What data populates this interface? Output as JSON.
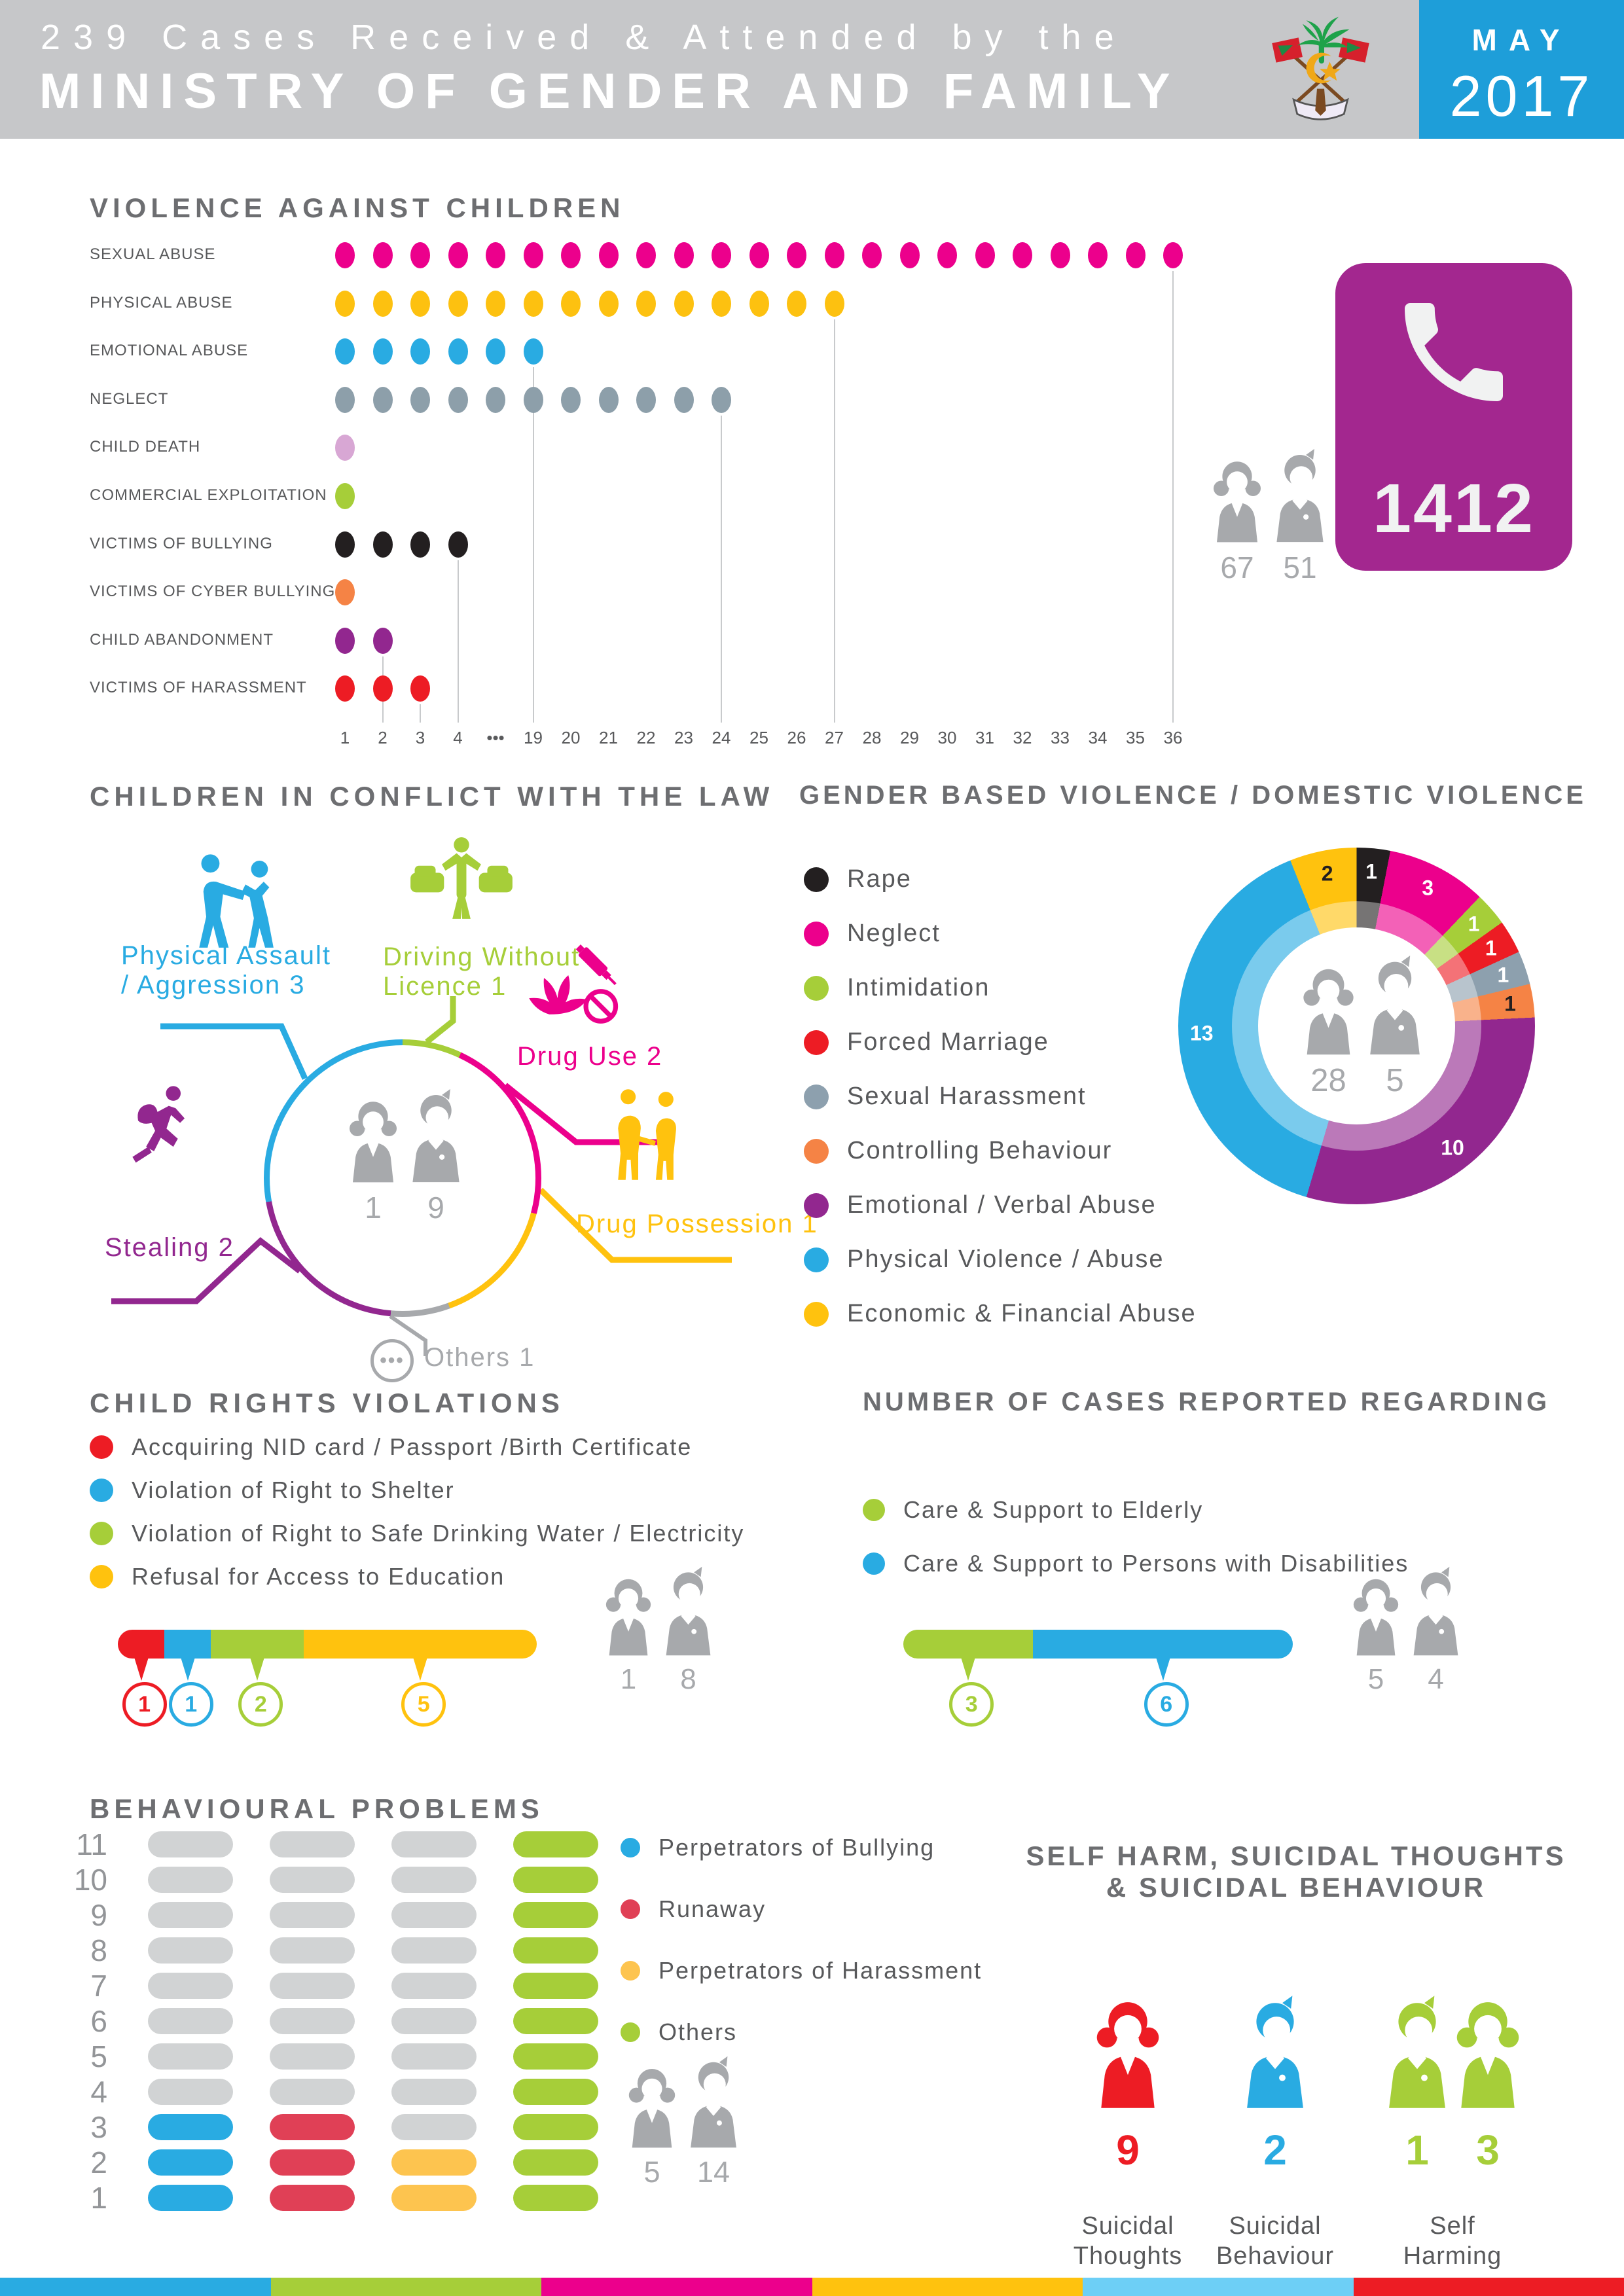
{
  "header": {
    "title_line1": "239 Cases Received & Attended by the",
    "title_line2": "MINISTRY OF GENDER AND FAMILY",
    "month": "MAY",
    "year": "2017",
    "bg": "#c6c7c9",
    "accent": "#1e9ed9",
    "emblem": "maldives-national-emblem"
  },
  "hotline": {
    "number": "1412",
    "bg": "#a3278f",
    "icon": "phone-icon"
  },
  "vac": {
    "title": "VIOLENCE AGAINST CHILDREN",
    "girls": "67",
    "boys": "51",
    "axis": [
      "1",
      "2",
      "3",
      "4",
      "•••",
      "19",
      "20",
      "21",
      "22",
      "23",
      "24",
      "25",
      "26",
      "27",
      "28",
      "29",
      "30",
      "31",
      "32",
      "33",
      "34",
      "35",
      "36"
    ],
    "rows": [
      {
        "label": "SEXUAL ABUSE",
        "value": 36,
        "ticks": 23,
        "color": "#ec008c",
        "line": true
      },
      {
        "label": "PHYSICAL ABUSE",
        "value": 27,
        "ticks": 14,
        "color": "#fdc110",
        "line": true
      },
      {
        "label": "EMOTIONAL ABUSE",
        "value": 19,
        "ticks": 6,
        "color": "#29abe2",
        "line": true
      },
      {
        "label": "NEGLECT",
        "value": 24,
        "ticks": 11,
        "color": "#8d9faa",
        "line": true
      },
      {
        "label": "CHILD DEATH",
        "value": 1,
        "ticks": 1,
        "color": "#d8a7d4",
        "line": false
      },
      {
        "label": "COMMERCIAL EXPLOITATION",
        "value": 1,
        "ticks": 1,
        "color": "#a6ce39",
        "line": false
      },
      {
        "label": "VICTIMS OF BULLYING",
        "value": 4,
        "ticks": 4,
        "color": "#231f20",
        "line": true
      },
      {
        "label": "VICTIMS OF CYBER BULLYING",
        "value": 1,
        "ticks": 1,
        "color": "#f58345",
        "line": false
      },
      {
        "label": "CHILD ABANDONMENT",
        "value": 2,
        "ticks": 2,
        "color": "#92278f",
        "line": true
      },
      {
        "label": "VICTIMS OF HARASSMENT",
        "value": 3,
        "ticks": 3,
        "color": "#ed1c24",
        "line": true
      }
    ]
  },
  "cicl": {
    "title": "CHILDREN IN CONFLICT WITH THE LAW",
    "girls": "1",
    "boys": "9",
    "ring_start_deg": -25,
    "ring": [
      {
        "color": "#a6ce39",
        "deg": 50
      },
      {
        "color": "#ec008c",
        "deg": 80
      },
      {
        "color": "#ffc20e",
        "deg": 55
      },
      {
        "color": "#a7a9ac",
        "deg": 25
      },
      {
        "color": "#92278f",
        "deg": 75
      },
      {
        "color": "#29abe2",
        "deg": 75
      }
    ],
    "items": [
      {
        "id": "physical-assault",
        "lines": [
          "Physical Assault",
          "/ Aggression 3"
        ],
        "value": 3,
        "color": "#29abe2"
      },
      {
        "id": "driving-without-licence",
        "lines": [
          "Driving Without",
          "Licence 1"
        ],
        "value": 1,
        "color": "#a6ce39"
      },
      {
        "id": "drug-use",
        "lines": [
          "Drug Use 2"
        ],
        "value": 2,
        "color": "#ec008c"
      },
      {
        "id": "drug-possession",
        "lines": [
          "Drug Possession 1"
        ],
        "value": 1,
        "color": "#ffc20e"
      },
      {
        "id": "stealing",
        "lines": [
          "Stealing 2"
        ],
        "value": 2,
        "color": "#92278f"
      },
      {
        "id": "others",
        "lines": [
          "Others 1"
        ],
        "value": 1,
        "color": "#a7a9ac"
      }
    ]
  },
  "gbv": {
    "title": "GENDER BASED VIOLENCE / DOMESTIC VIOLENCE",
    "women": "28",
    "men": "5",
    "legend": [
      {
        "label": "Rape",
        "color": "#231f20",
        "value": 1,
        "label_color": "#ffffff"
      },
      {
        "label": "Neglect",
        "color": "#ec008c",
        "value": 3,
        "label_color": "#ffffff"
      },
      {
        "label": "Intimidation",
        "color": "#a6ce39",
        "value": 1,
        "label_color": "#ffffff"
      },
      {
        "label": "Forced Marriage",
        "color": "#ed1c24",
        "value": 1,
        "label_color": "#ffffff"
      },
      {
        "label": "Sexual Harassment",
        "color": "#8da0ae",
        "value": 1,
        "label_color": "#ffffff"
      },
      {
        "label": "Controlling Behaviour",
        "color": "#f58345",
        "value": 1,
        "label_color": "#231f20"
      },
      {
        "label": "Emotional / Verbal Abuse",
        "color": "#92278f",
        "value": 10,
        "label_color": "#ffffff"
      },
      {
        "label": "Physical Violence / Abuse",
        "color": "#29abe2",
        "value": 13,
        "label_color": "#ffffff"
      },
      {
        "label": "Economic & Financial Abuse",
        "color": "#ffc20e",
        "value": 2,
        "label_color": "#231f20"
      }
    ]
  },
  "crv": {
    "title": "CHILD RIGHTS VIOLATIONS",
    "girls": "1",
    "boys": "8",
    "items": [
      {
        "label": "Accquiring NID card / Passport /Birth Certificate",
        "color": "#ed1c24",
        "value": 1
      },
      {
        "label": "Violation of Right to Shelter",
        "color": "#29abe2",
        "value": 1
      },
      {
        "label": "Violation of Right to Safe Drinking Water / Electricity",
        "color": "#a6ce39",
        "value": 2
      },
      {
        "label": "Refusal for Access to Education",
        "color": "#ffc20e",
        "value": 5
      }
    ]
  },
  "ncr": {
    "title": "NUMBER OF CASES REPORTED REGARDING",
    "girls": "5",
    "boys": "4",
    "items": [
      {
        "label": "Care & Support to Elderly",
        "color": "#a6ce39",
        "value": 3
      },
      {
        "label": "Care & Support to Persons with Disabilities",
        "color": "#29abe2",
        "value": 6
      }
    ]
  },
  "behavioural": {
    "title": "BEHAVIOURAL PROBLEMS",
    "girls": "5",
    "boys": "14",
    "rows": 11,
    "empty_color": "#d1d3d4",
    "legend": [
      {
        "label": "Perpetrators of Bullying",
        "color": "#29abe2",
        "value": 3
      },
      {
        "label": "Runaway",
        "color": "#e04056",
        "value": 3
      },
      {
        "label": "Perpetrators of Harassment",
        "color": "#fdc44f",
        "value": 2
      },
      {
        "label": "Others",
        "color": "#a6ce39",
        "value": 11
      }
    ]
  },
  "self_harm": {
    "title_line1": "SELF HARM, SUICIDAL THOUGHTS",
    "title_line2": "& SUICIDAL BEHAVIOUR",
    "groups": [
      {
        "label_lines": [
          "Suicidal",
          "Thoughts"
        ],
        "figures": [
          {
            "type": "girl",
            "value": "9",
            "color": "#ed1c24"
          }
        ]
      },
      {
        "label_lines": [
          "Suicidal",
          "Behaviour"
        ],
        "figures": [
          {
            "type": "boy",
            "value": "2",
            "color": "#29abe2"
          }
        ]
      },
      {
        "label_lines": [
          "Self",
          "Harming"
        ],
        "figures": [
          {
            "type": "boy",
            "value": "1",
            "color": "#a6ce39"
          },
          {
            "type": "girl",
            "value": "3",
            "color": "#a6ce39"
          }
        ]
      }
    ]
  },
  "footer_colors": [
    "#29abe2",
    "#a6ce39",
    "#ec008c",
    "#ffc20e",
    "#6dcff6",
    "#ed1c24"
  ],
  "chart_data": [
    {
      "type": "dot",
      "title": "VIOLENCE AGAINST CHILDREN",
      "categories": [
        "Sexual Abuse",
        "Physical Abuse",
        "Emotional Abuse",
        "Neglect",
        "Child Death",
        "Commercial Exploitation",
        "Victims of Bullying",
        "Victims of Cyber Bullying",
        "Child Abandonment",
        "Victims of Harassment"
      ],
      "values": [
        36,
        27,
        19,
        24,
        1,
        1,
        4,
        1,
        2,
        3
      ],
      "xlabel": "number of cases (axis 1-4, then 19-36)",
      "girls": 67,
      "boys": 51
    },
    {
      "type": "pie",
      "title": "CHILDREN IN CONFLICT WITH THE LAW",
      "categories": [
        "Physical Assault / Aggression",
        "Driving Without Licence",
        "Drug Use",
        "Drug Possession",
        "Stealing",
        "Others"
      ],
      "values": [
        3,
        1,
        2,
        1,
        2,
        1
      ],
      "girls": 1,
      "boys": 9
    },
    {
      "type": "pie",
      "title": "GENDER BASED VIOLENCE / DOMESTIC VIOLENCE",
      "categories": [
        "Rape",
        "Neglect",
        "Intimidation",
        "Forced Marriage",
        "Sexual Harassment",
        "Controlling Behaviour",
        "Emotional / Verbal Abuse",
        "Physical Violence / Abuse",
        "Economic & Financial Abuse"
      ],
      "values": [
        1,
        3,
        1,
        1,
        1,
        1,
        10,
        13,
        2
      ],
      "women": 28,
      "men": 5,
      "legend_position": "left"
    },
    {
      "type": "bar",
      "title": "CHILD RIGHTS VIOLATIONS",
      "categories": [
        "Accquiring NID card / Passport /Birth Certificate",
        "Violation of Right to Shelter",
        "Violation of Right to Safe Drinking Water / Electricity",
        "Refusal for Access to Education"
      ],
      "values": [
        1,
        1,
        2,
        5
      ],
      "girls": 1,
      "boys": 8
    },
    {
      "type": "bar",
      "title": "NUMBER OF CASES REPORTED REGARDING",
      "categories": [
        "Care & Support to Elderly",
        "Care & Support to Persons with Disabilities"
      ],
      "values": [
        3,
        6
      ],
      "girls": 5,
      "boys": 4
    },
    {
      "type": "bar",
      "title": "BEHAVIOURAL PROBLEMS",
      "categories": [
        "Perpetrators of Bullying",
        "Runaway",
        "Perpetrators of Harassment",
        "Others"
      ],
      "values": [
        3,
        3,
        2,
        11
      ],
      "ylim": [
        0,
        11
      ],
      "girls": 5,
      "boys": 14
    },
    {
      "type": "bar",
      "title": "SELF HARM, SUICIDAL THOUGHTS & SUICIDAL BEHAVIOUR",
      "categories": [
        "Suicidal Thoughts (female)",
        "Suicidal Behaviour (male)",
        "Self Harming (male)",
        "Self Harming (female)"
      ],
      "values": [
        9,
        2,
        1,
        3
      ]
    }
  ]
}
